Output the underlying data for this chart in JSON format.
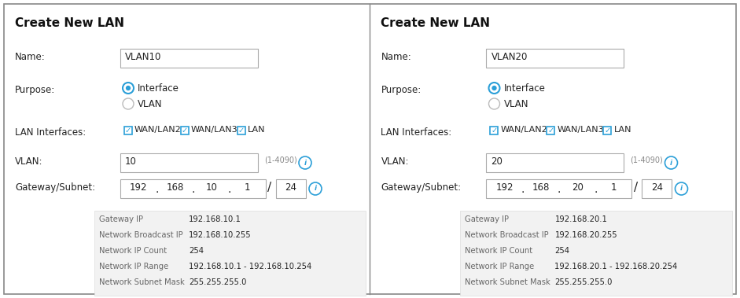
{
  "bg_color": "#ffffff",
  "gray_bg": "#f2f2f2",
  "blue_color": "#2b9fd8",
  "text_dark": "#222222",
  "text_gray": "#666666",
  "border_gray": "#aaaaaa",
  "panels": [
    {
      "title": "Create New LAN",
      "name_value": "VLAN10",
      "vlan_value": "10",
      "gateway_parts": [
        "192",
        "168",
        "10",
        "1"
      ],
      "subnet": "24",
      "info_rows": [
        [
          "Gateway IP",
          "192.168.10.1"
        ],
        [
          "Network Broadcast IP",
          "192.168.10.255"
        ],
        [
          "Network IP Count",
          "254"
        ],
        [
          "Network IP Range",
          "192.168.10.1 - 192.168.10.254"
        ],
        [
          "Network Subnet Mask",
          "255.255.255.0"
        ]
      ]
    },
    {
      "title": "Create New LAN",
      "name_value": "VLAN20",
      "vlan_value": "20",
      "gateway_parts": [
        "192",
        "168",
        "20",
        "1"
      ],
      "subnet": "24",
      "info_rows": [
        [
          "Gateway IP",
          "192.168.20.1"
        ],
        [
          "Network Broadcast IP",
          "192.168.20.255"
        ],
        [
          "Network IP Count",
          "254"
        ],
        [
          "Network IP Range",
          "192.168.20.1 - 192.168.20.254"
        ],
        [
          "Network Subnet Mask",
          "255.255.255.0"
        ]
      ]
    }
  ]
}
